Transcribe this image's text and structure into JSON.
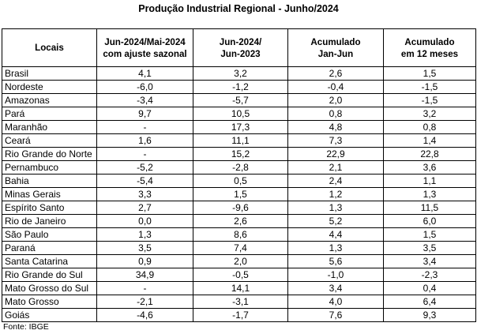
{
  "title": "Produção Industrial Regional - Junho/2024",
  "columns": [
    {
      "line1": "Locais",
      "line2": ""
    },
    {
      "line1": "Jun-2024/Mai-2024",
      "line2": "com ajuste sazonal"
    },
    {
      "line1": "Jun-2024/",
      "line2": "Jun-2023"
    },
    {
      "line1": "Acumulado",
      "line2": "Jan-Jun"
    },
    {
      "line1": "Acumulado",
      "line2": "em 12 meses"
    }
  ],
  "rows": [
    [
      "Brasil",
      "4,1",
      "3,2",
      "2,6",
      "1,5"
    ],
    [
      "Nordeste",
      "-6,0",
      "-1,2",
      "-0,4",
      "-1,5"
    ],
    [
      "Amazonas",
      "-3,4",
      "-5,7",
      "2,0",
      "-1,5"
    ],
    [
      "Pará",
      "9,7",
      "10,5",
      "0,8",
      "3,2"
    ],
    [
      "Maranhão",
      "-",
      "17,3",
      "4,8",
      "0,8"
    ],
    [
      "Ceará",
      "1,6",
      "11,1",
      "7,3",
      "1,4"
    ],
    [
      "Rio Grande do Norte",
      "-",
      "15,2",
      "22,9",
      "22,8"
    ],
    [
      "Pernambuco",
      "-5,2",
      "-2,8",
      "2,1",
      "3,6"
    ],
    [
      "Bahia",
      "-5,4",
      "0,5",
      "2,4",
      "1,1"
    ],
    [
      "Minas Gerais",
      "3,3",
      "1,5",
      "1,2",
      "1,3"
    ],
    [
      "Espírito Santo",
      "2,7",
      "-9,6",
      "1,3",
      "11,5"
    ],
    [
      "Rio de Janeiro",
      "0,0",
      "2,6",
      "5,2",
      "6,0"
    ],
    [
      "São Paulo",
      "1,3",
      "8,6",
      "4,4",
      "1,5"
    ],
    [
      "Paraná",
      "3,5",
      "7,4",
      "1,3",
      "3,5"
    ],
    [
      "Santa Catarina",
      "0,9",
      "2,0",
      "5,6",
      "3,4"
    ],
    [
      "Rio Grande do Sul",
      "34,9",
      "-0,5",
      "-1,0",
      "-2,3"
    ],
    [
      "Mato Grosso do Sul",
      "-",
      "14,1",
      "3,4",
      "0,4"
    ],
    [
      "Mato Grosso",
      "-2,1",
      "-3,1",
      "4,0",
      "6,4"
    ],
    [
      "Goiás",
      "-4,6",
      "-1,7",
      "7,6",
      "9,3"
    ]
  ],
  "source": "Fonte: IBGE"
}
